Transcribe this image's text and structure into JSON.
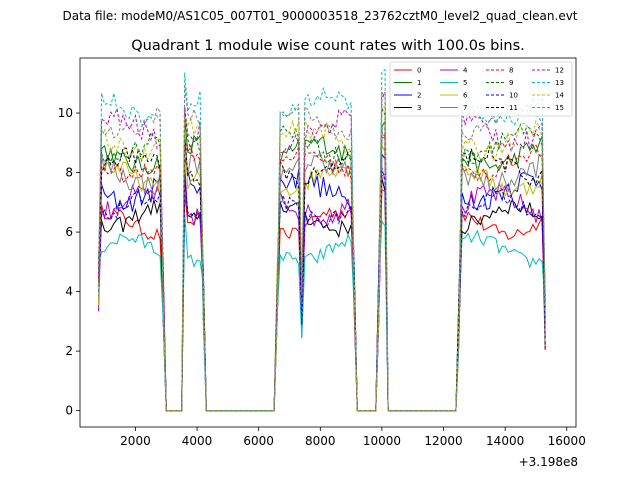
{
  "suptitle": "Data file: modeM0/AS1C05_007T01_9000003518_23762cztM0_level2_quad_clean.evt",
  "chart_data": {
    "type": "line",
    "title": "Quadrant 1 module wise count rates with 100.0s bins.",
    "xlabel": "",
    "ylabel": "",
    "x_offset_label": "+3.198e8",
    "xlim": [
      200,
      16300
    ],
    "ylim": [
      -0.55,
      11.85
    ],
    "xticks": [
      2000,
      4000,
      6000,
      8000,
      10000,
      12000,
      14000,
      16000
    ],
    "xtick_labels": [
      "2000",
      "4000",
      "6000",
      "8000",
      "10000",
      "12000",
      "14000",
      "16000"
    ],
    "yticks": [
      0,
      2,
      4,
      6,
      8,
      10
    ],
    "ytick_labels": [
      "0",
      "2",
      "4",
      "6",
      "8",
      "10"
    ],
    "bin_width_s": 100,
    "segments": [
      {
        "start": 800,
        "end": 2900,
        "edge_value": 4
      },
      {
        "start": 3600,
        "end": 4200,
        "edge_value": 4
      },
      {
        "start": 6600,
        "end": 9100,
        "edge_value": 4
      },
      {
        "start": 9900,
        "end": 10100,
        "edge_value": 4
      },
      {
        "start": 12500,
        "end": 15300,
        "edge_value": 3
      }
    ],
    "gaps_value": 0,
    "series": [
      {
        "name": "0",
        "color": "#ff0000",
        "dash": "solid",
        "level": 6.3
      },
      {
        "name": "1",
        "color": "#008000",
        "dash": "solid",
        "level": 8.6
      },
      {
        "name": "2",
        "color": "#0000ff",
        "dash": "solid",
        "level": 7.4
      },
      {
        "name": "3",
        "color": "#000000",
        "dash": "solid",
        "level": 6.5
      },
      {
        "name": "4",
        "color": "#c000c0",
        "dash": "solid",
        "level": 6.9
      },
      {
        "name": "5",
        "color": "#00bfbf",
        "dash": "solid",
        "level": 5.4
      },
      {
        "name": "6",
        "color": "#bfbf00",
        "dash": "solid",
        "level": 7.8
      },
      {
        "name": "7",
        "color": "#808080",
        "dash": "solid",
        "level": 8.0
      },
      {
        "name": "8",
        "color": "#ff0000",
        "dash": "dashed",
        "level": 8.3
      },
      {
        "name": "9",
        "color": "#008000",
        "dash": "dashed",
        "level": 8.9
      },
      {
        "name": "10",
        "color": "#0000ff",
        "dash": "dashed",
        "level": 6.8
      },
      {
        "name": "11",
        "color": "#000000",
        "dash": "dashed",
        "level": 8.2
      },
      {
        "name": "12",
        "color": "#c000c0",
        "dash": "dashed",
        "level": 9.4
      },
      {
        "name": "13",
        "color": "#00bfbf",
        "dash": "dashed",
        "level": 10.2
      },
      {
        "name": "14",
        "color": "#bfbf00",
        "dash": "dashed",
        "level": 9.1
      },
      {
        "name": "15",
        "color": "#808080",
        "dash": "dashed",
        "level": 9.7
      }
    ],
    "legend_location": "top-right",
    "legend_columns": 4,
    "grid": false
  }
}
